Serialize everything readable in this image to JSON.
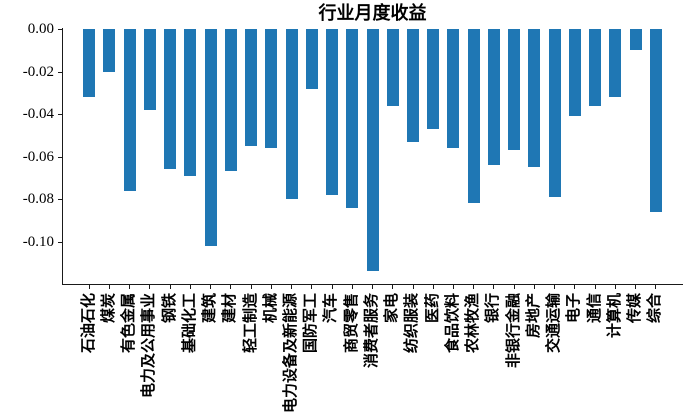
{
  "chart_data": {
    "type": "bar",
    "title": "行业月度收益",
    "categories": [
      "石油石化",
      "煤炭",
      "有色金属",
      "电力及公用事业",
      "钢铁",
      "基础化工",
      "建筑",
      "建材",
      "轻工制造",
      "机械",
      "电力设备及新能源",
      "国防军工",
      "汽车",
      "商贸零售",
      "消费者服务",
      "家电",
      "纺织服装",
      "医药",
      "食品饮料",
      "农林牧渔",
      "银行",
      "非银行金融",
      "房地产",
      "交通运输",
      "电子",
      "通信",
      "计算机",
      "传媒",
      "综合"
    ],
    "values": [
      -0.032,
      -0.02,
      -0.076,
      -0.038,
      -0.066,
      -0.069,
      -0.102,
      -0.067,
      -0.055,
      -0.056,
      -0.08,
      -0.028,
      -0.078,
      -0.084,
      -0.114,
      -0.036,
      -0.053,
      -0.047,
      -0.056,
      -0.082,
      -0.064,
      -0.057,
      -0.065,
      -0.079,
      -0.041,
      -0.036,
      -0.032,
      -0.01,
      -0.086
    ],
    "xlabel": "",
    "ylabel": "",
    "ylim": [
      -0.12,
      0
    ],
    "yticks": [
      0,
      -0.02,
      -0.04,
      -0.06,
      -0.08,
      -0.1
    ],
    "ytick_labels": [
      "0.00",
      "-0.02",
      "-0.04",
      "-0.06",
      "-0.08",
      "-0.10"
    ],
    "bar_color": "#1f77b4",
    "axis_color": "#1a1a1a",
    "grid": false,
    "legend": null
  }
}
